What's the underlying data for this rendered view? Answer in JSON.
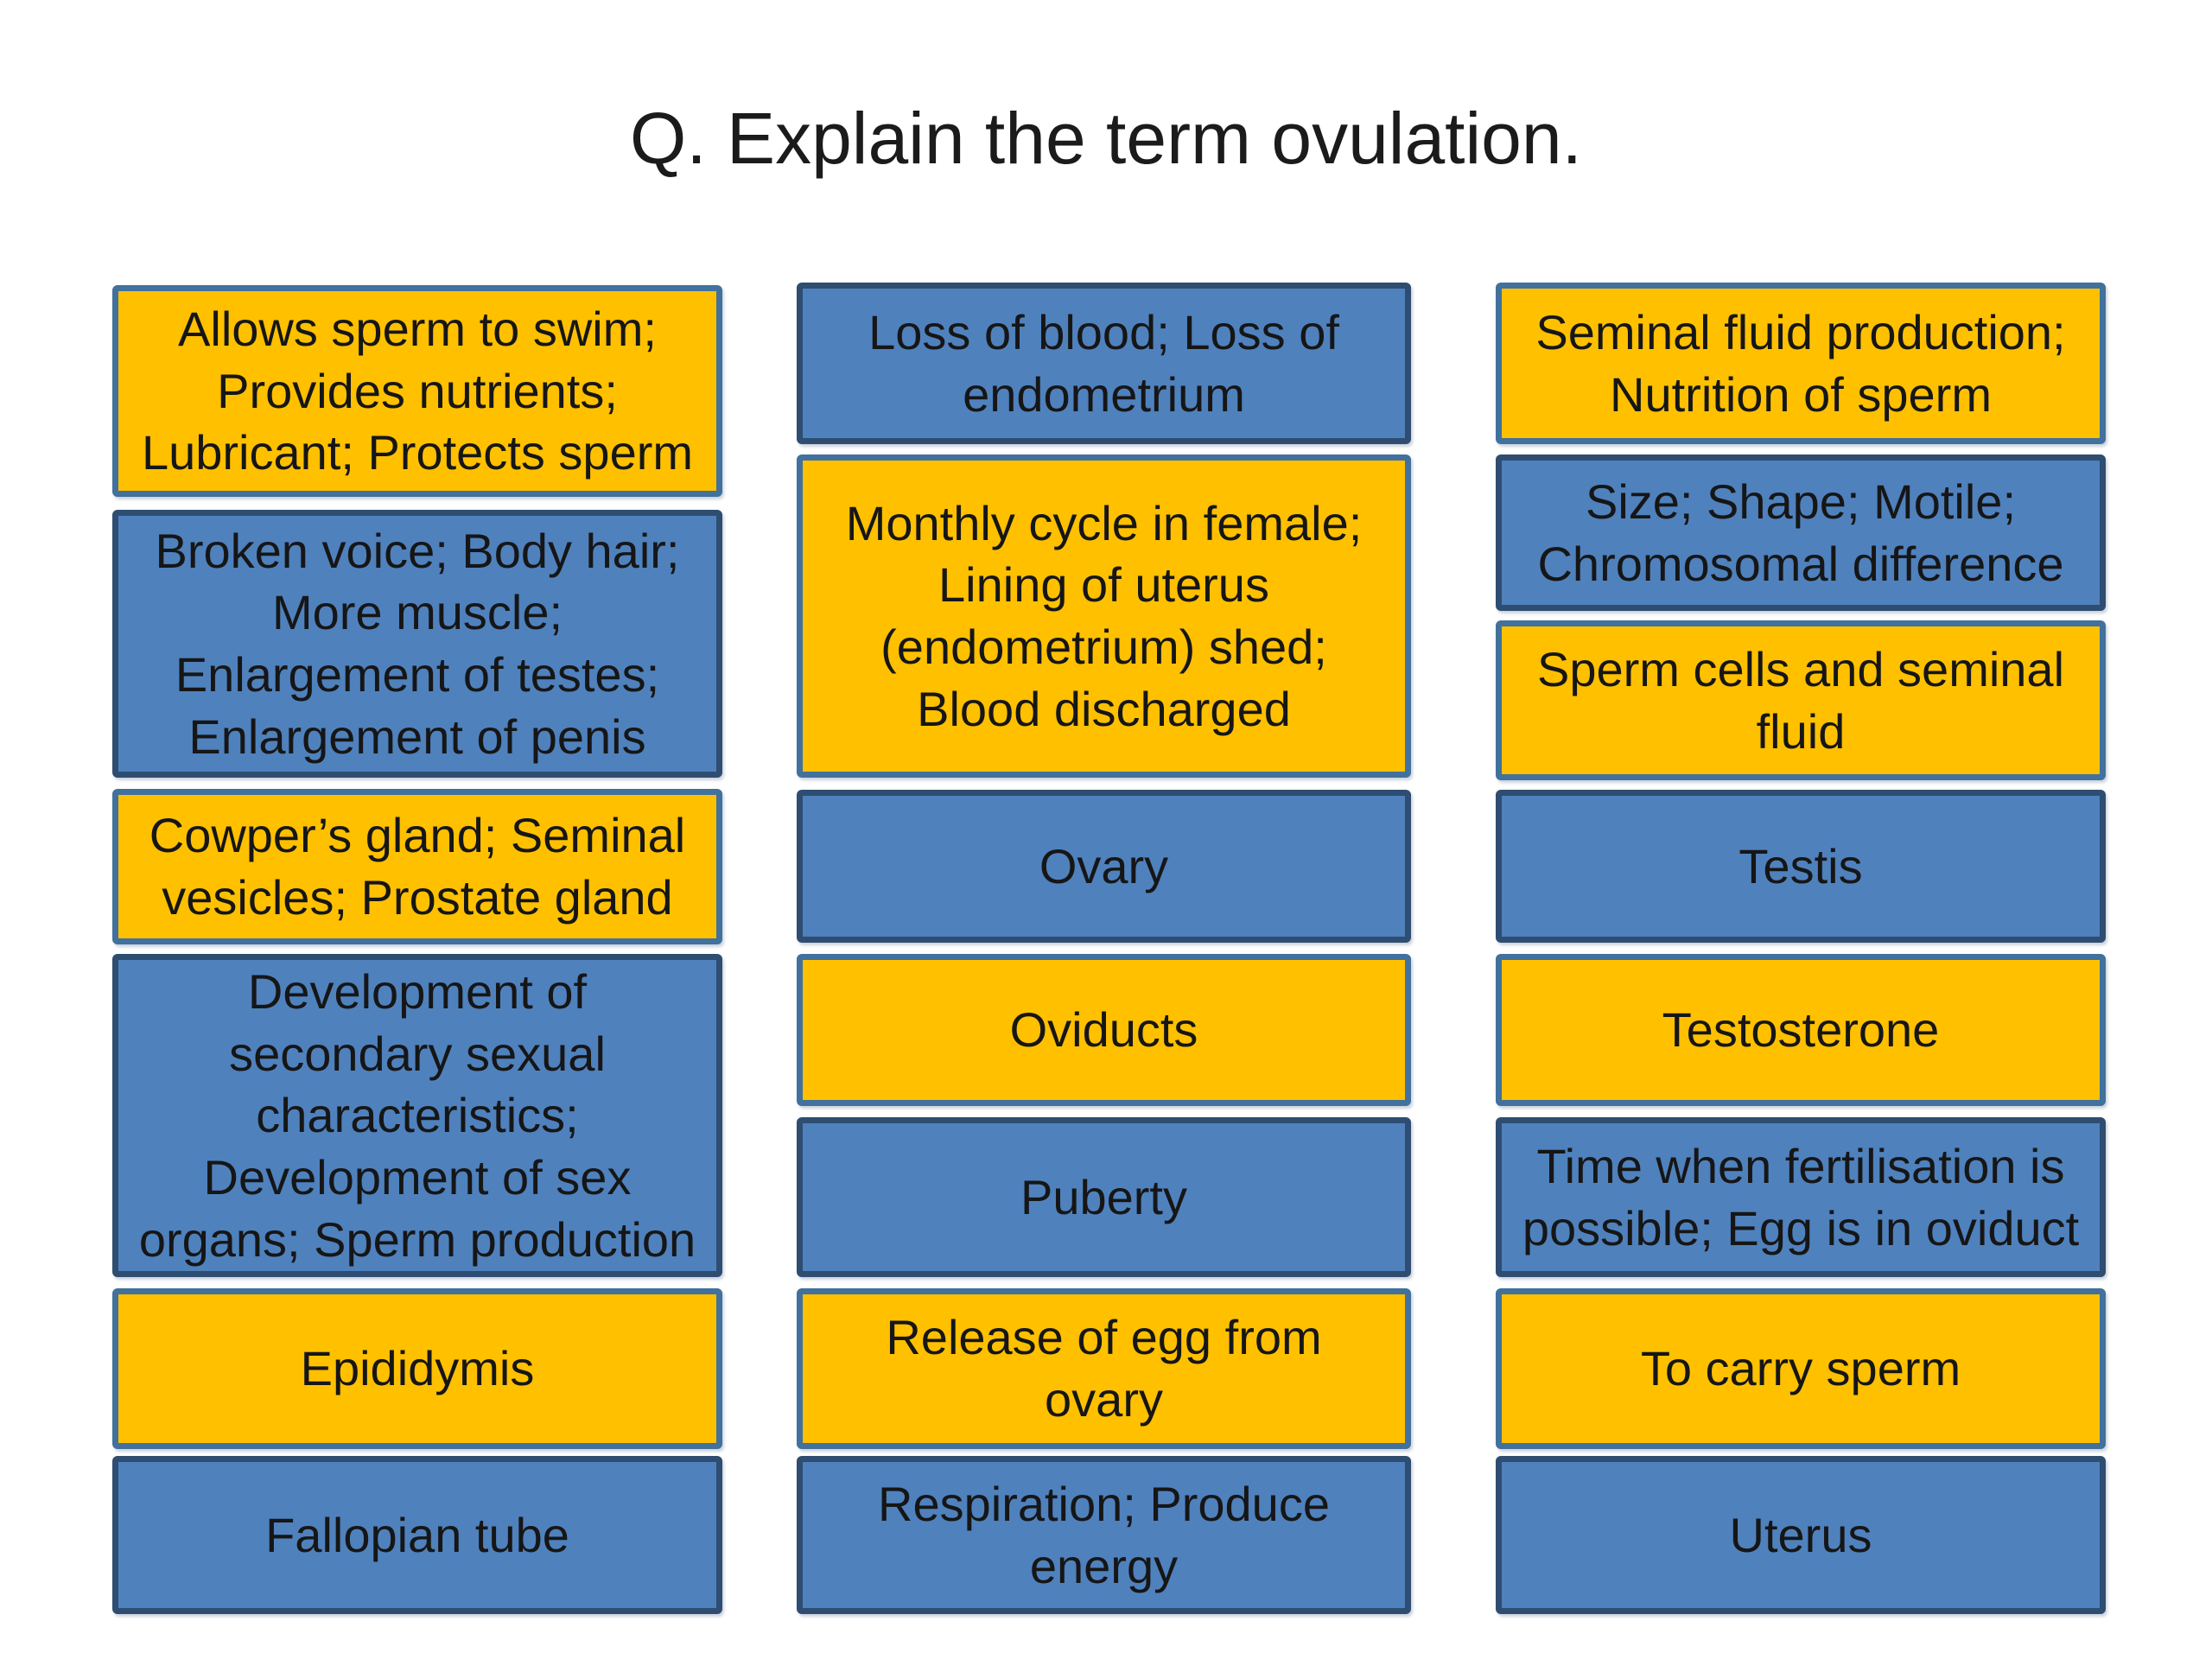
{
  "slide": {
    "title": "Q. Explain the term ovulation.",
    "colors": {
      "orange_fill": "#FFC000",
      "orange_border": "#41719C",
      "blue_fill": "#4F81BD",
      "blue_border": "#2E4D71",
      "text": "#161616",
      "background": "#FFFFFF"
    },
    "columns": [
      {
        "boxes": [
          {
            "style": "orange",
            "text": "Allows sperm to swim;\nProvides nutrients;\nLubricant; Protects sperm"
          },
          {
            "style": "blue",
            "text": "Broken voice; Body hair;\nMore muscle;\nEnlargement of testes;\nEnlargement of penis"
          },
          {
            "style": "orange",
            "text": "Cowper’s gland; Seminal\nvesicles; Prostate gland"
          },
          {
            "style": "blue",
            "text": "Development of\nsecondary sexual\ncharacteristics;\nDevelopment of sex\norgans; Sperm production"
          },
          {
            "style": "orange",
            "text": "Epididymis"
          },
          {
            "style": "blue",
            "text": "Fallopian tube"
          }
        ]
      },
      {
        "boxes": [
          {
            "style": "blue",
            "text": "Loss of blood; Loss of\nendometrium"
          },
          {
            "style": "orange",
            "text": "Monthly cycle in female;\nLining of uterus\n(endometrium) shed;\nBlood discharged"
          },
          {
            "style": "blue",
            "text": "Ovary"
          },
          {
            "style": "orange",
            "text": "Oviducts"
          },
          {
            "style": "blue",
            "text": "Puberty"
          },
          {
            "style": "orange",
            "text": "Release of egg from\novary"
          },
          {
            "style": "blue",
            "text": "Respiration; Produce\nenergy"
          }
        ]
      },
      {
        "boxes": [
          {
            "style": "orange",
            "text": "Seminal fluid production;\nNutrition of sperm"
          },
          {
            "style": "blue",
            "text": "Size; Shape; Motile;\nChromosomal difference"
          },
          {
            "style": "orange",
            "text": "Sperm cells and seminal\nfluid"
          },
          {
            "style": "blue",
            "text": "Testis"
          },
          {
            "style": "orange",
            "text": "Testosterone"
          },
          {
            "style": "blue",
            "text": "Time when fertilisation is\npossible; Egg is in oviduct"
          },
          {
            "style": "orange",
            "text": "To carry sperm"
          },
          {
            "style": "blue",
            "text": "Uterus"
          }
        ]
      }
    ]
  }
}
